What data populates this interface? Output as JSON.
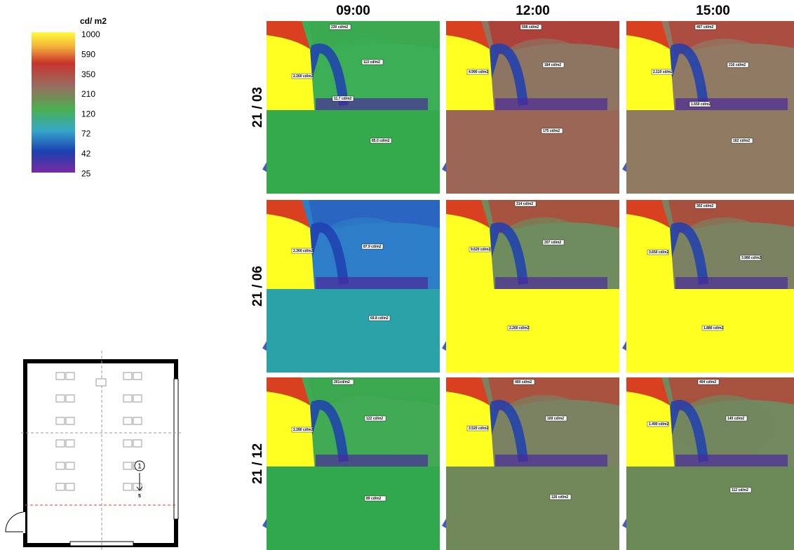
{
  "legend": {
    "title": "cd/ m2",
    "labels": [
      1000,
      590,
      350,
      210,
      120,
      72,
      42,
      25
    ]
  },
  "columns": [
    "09:00",
    "12:00",
    "15:00"
  ],
  "rows": [
    {
      "label": "21 / 03",
      "cells": [
        [
          "230 cd/m2",
          "113 cd/m2",
          "2.260 cd/m2",
          "11.7 cd/m2",
          "85.0 cd/m2"
        ],
        [
          "508 cd/m2",
          "4.990 cd/m2",
          "184 cd/m2",
          "175 cd/m2"
        ],
        [
          "407 cd/m2",
          "2.110 cd/m2",
          "216 cd/m2",
          "1.650 cd/m2",
          "162 cd/m2"
        ]
      ]
    },
    {
      "label": "21 / 06",
      "cells": [
        [
          "2.360 cd/m2",
          "87.9 cd/m2",
          "69.8 cd/m2"
        ],
        [
          "314 cd/m2",
          "9.620 cd/m2",
          "207 cd/m2",
          "2.260 cd/m2"
        ],
        [
          "302 cd/m2",
          "3.650 cd/m2",
          "3.980 cd/m2",
          "1.880 cd/m2"
        ]
      ]
    },
    {
      "label": "21 / 12",
      "cells": [
        [
          "201cd/m2",
          "2.280 cd/m2",
          "122 cd/m2",
          "89 cd/m2"
        ],
        [
          "400 cd/m2",
          "3.520 cd/m2",
          "169 cd/m2",
          "126 cd/m2"
        ],
        [
          "404 cd/m2",
          "1.490 cd/m2",
          "140 cd/m2",
          "112 cd/m2"
        ]
      ]
    }
  ],
  "plan": {
    "viewpoint": "1",
    "view_number": "5"
  }
}
